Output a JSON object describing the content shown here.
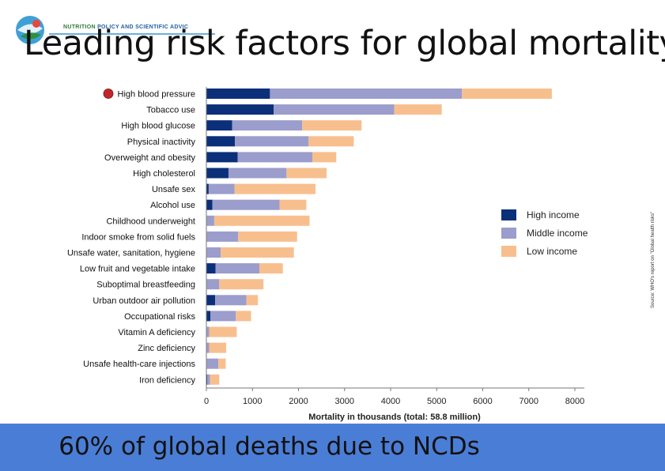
{
  "logo": {
    "text_a": "NUTRITION ",
    "text_b": "POLICY AND SCIENTIFIC ADVIC"
  },
  "title": "Leading risk factors for global mortality",
  "source": "Source: WHO's report on \"Global health risks\"",
  "banner": "60% of global deaths due to NCDs",
  "colors": {
    "high": "#0c2f7a",
    "middle": "#9b9dcc",
    "low": "#f8bf8e",
    "marker": "#c0272d",
    "banner": "#4a7ed6"
  },
  "chart_data": {
    "type": "bar",
    "orientation": "horizontal",
    "stacked": true,
    "categories": [
      "High blood pressure",
      "Tobacco use",
      "High blood glucose",
      "Physical inactivity",
      "Overweight and obesity",
      "High cholesterol",
      "Unsafe sex",
      "Alcohol use",
      "Childhood underweight",
      "Indoor smoke from solid fuels",
      "Unsafe water, sanitation, hygiene",
      "Low fruit and vegetable intake",
      "Suboptimal breastfeeding",
      "Urban outdoor air pollution",
      "Occupational risks",
      "Vitamin A deficiency",
      "Zinc deficiency",
      "Unsafe health-care injections",
      "Iron deficiency"
    ],
    "series": [
      {
        "name": "High income",
        "values": [
          1380,
          1460,
          560,
          620,
          680,
          480,
          50,
          130,
          10,
          10,
          10,
          200,
          10,
          190,
          90,
          10,
          10,
          10,
          20
        ]
      },
      {
        "name": "Middle income",
        "values": [
          4170,
          2620,
          1520,
          1600,
          1620,
          1260,
          560,
          1460,
          160,
          680,
          300,
          950,
          270,
          680,
          550,
          50,
          50,
          250,
          60
        ]
      },
      {
        "name": "Low income",
        "values": [
          1950,
          1030,
          1290,
          980,
          520,
          870,
          1760,
          580,
          2070,
          1280,
          1590,
          510,
          960,
          250,
          330,
          600,
          370,
          160,
          200
        ]
      }
    ],
    "highlight": "High blood pressure",
    "xlabel": "Mortality in thousands (total: 58.8 million)",
    "xlim": [
      0,
      8000
    ],
    "xticks": [
      0,
      1000,
      2000,
      3000,
      4000,
      5000,
      6000,
      7000,
      8000
    ],
    "legend": "right",
    "grid": false
  }
}
